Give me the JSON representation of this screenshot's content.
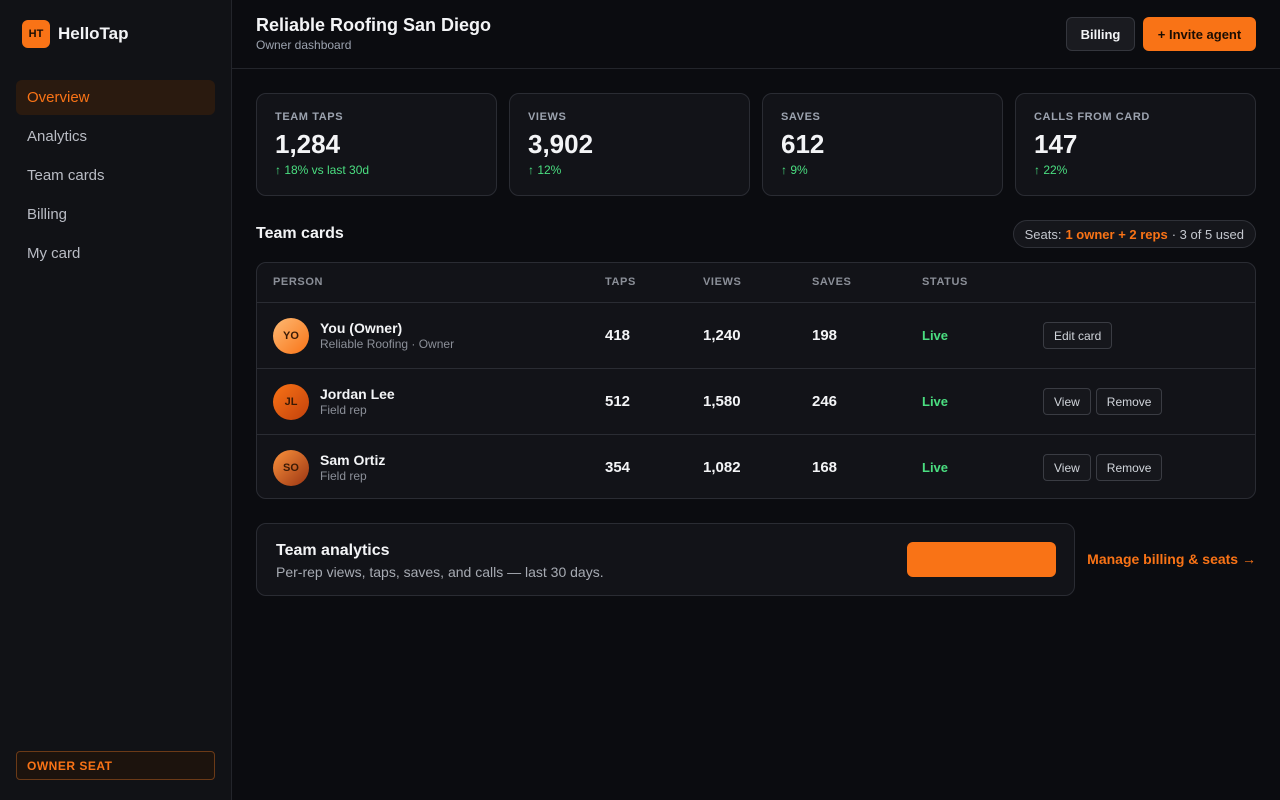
{
  "sidebar": {
    "logo_badge": "HT",
    "brand": "HelloTap",
    "nav": [
      "Overview",
      "Analytics",
      "Team cards",
      "Billing",
      "My card"
    ],
    "footer_badge": "OWNER SEAT"
  },
  "header": {
    "title": "Reliable Roofing San Diego",
    "subtitle": "Owner dashboard",
    "buttons": [
      "Billing",
      "+ Invite agent"
    ]
  },
  "stats": [
    {
      "label": "TEAM TAPS",
      "value": "1,284",
      "delta": "↑ 18% vs last 30d"
    },
    {
      "label": "VIEWS",
      "value": "3,902",
      "delta": "↑ 12%"
    },
    {
      "label": "SAVES",
      "value": "612",
      "delta": "↑ 9%"
    },
    {
      "label": "CALLS FROM CARD",
      "value": "147",
      "delta": "↑ 22%"
    }
  ],
  "team": {
    "title": "Team cards",
    "seats_prefix": "Seats:",
    "seats_highlight": "1 owner + 2 reps",
    "seats_suffix": "· 3 of 5 used",
    "columns": [
      "PERSON",
      "TAPS",
      "VIEWS",
      "SAVES",
      "STATUS"
    ],
    "rows": [
      {
        "initials": "YO",
        "name": "You (Owner)",
        "sub": "Reliable Roofing · Owner",
        "taps": "418",
        "views": "1,240",
        "saves": "198",
        "status": "Live",
        "actions": [
          "Edit card"
        ]
      },
      {
        "initials": "JL",
        "name": "Jordan Lee",
        "sub": "Field rep",
        "taps": "512",
        "views": "1,580",
        "saves": "246",
        "status": "Live",
        "actions": [
          "View",
          "Remove"
        ]
      },
      {
        "initials": "SO",
        "name": "Sam Ortiz",
        "sub": "Field rep",
        "taps": "354",
        "views": "1,082",
        "saves": "168",
        "status": "Live",
        "actions": [
          "View",
          "Remove"
        ]
      }
    ]
  },
  "analytics": {
    "title": "Team analytics",
    "text": "Per-rep views, taps, saves, and calls — last 30 days.",
    "link": "Manage billing & seats →"
  }
}
